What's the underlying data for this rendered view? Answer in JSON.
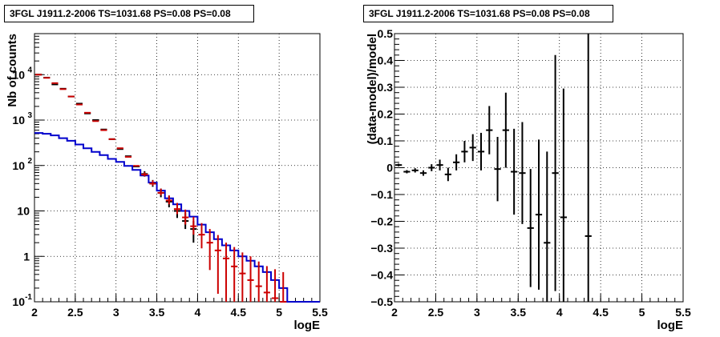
{
  "chart_data": [
    {
      "type": "line",
      "title": "3FGL J1911.2-2006 TS=1031.68 PS=0.08 PS=0.08",
      "xlabel": "logE",
      "ylabel": "Nb of counts",
      "xlim": [
        2,
        5.5
      ],
      "ylim": [
        0.1,
        80000
      ],
      "yscale": "log",
      "grid": true,
      "xticks": [
        "2",
        "2.5",
        "3",
        "3.5",
        "4",
        "4.5",
        "5",
        "5.5"
      ],
      "yticks": [
        {
          "v": 0.1,
          "t": "10"
        },
        {
          "v": 1,
          "t": "1"
        },
        {
          "v": 10,
          "t": "10"
        },
        {
          "v": 100,
          "t": "10"
        },
        {
          "v": 1000,
          "t": "10"
        },
        {
          "v": 10000,
          "t": "10"
        }
      ],
      "ytick_exponents": [
        "-1",
        "",
        "",
        "2",
        "3",
        "4"
      ],
      "bin_width": 0.1,
      "series": [
        {
          "color": "#cc0000",
          "x": [
            2.05,
            2.15,
            2.25,
            2.35,
            2.45,
            2.55,
            2.65,
            2.75,
            2.85,
            2.95,
            3.05,
            3.15,
            3.25,
            3.35,
            3.45,
            3.55,
            3.65,
            3.75,
            3.85,
            3.95,
            4.05,
            4.15,
            4.25,
            4.35,
            4.45,
            4.55,
            4.65,
            4.75,
            4.85,
            4.95,
            5.05
          ],
          "y": [
            10000,
            8500,
            6500,
            4800,
            3300,
            2200,
            1450,
            950,
            600,
            380,
            240,
            155,
            98,
            63,
            40,
            25,
            17,
            11,
            7.2,
            4.6,
            3.0,
            2.0,
            1.35,
            0.9,
            0.6,
            0.42,
            0.3,
            0.22,
            0.16,
            0.12,
            0.1
          ],
          "err_lo": [
            0,
            0,
            0,
            0,
            0,
            0,
            0,
            0,
            0,
            0,
            0,
            0,
            0,
            5,
            4,
            3,
            3,
            2.5,
            2.2,
            1.6,
            1.5,
            1.5,
            1.2,
            0.9,
            0.6,
            0.42,
            0.3,
            0.22,
            0.16,
            0.12,
            0.1
          ],
          "err_hi": [
            0,
            0,
            0,
            0,
            0,
            0,
            0,
            0,
            0,
            0,
            0,
            0,
            0,
            8,
            7,
            6,
            5,
            4,
            3.5,
            2.8,
            2.4,
            2.0,
            1.6,
            1.1,
            1.0,
            0.8,
            0.7,
            0.55,
            0.45,
            0.4,
            0.35
          ]
        },
        {
          "color": "#000000",
          "x": [
            2.05,
            2.15,
            2.25,
            2.35,
            2.45,
            2.55,
            2.65,
            2.75,
            2.85,
            2.95,
            3.05,
            3.15,
            3.25,
            3.35,
            3.45,
            3.55,
            3.65,
            3.75,
            3.85,
            3.95
          ],
          "y": [
            10000,
            8600,
            6100,
            4900,
            3300,
            2300,
            1400,
            1000,
            620,
            380,
            230,
            160,
            95,
            65,
            40,
            25,
            16,
            10,
            6,
            4
          ],
          "err_lo": [
            0,
            0,
            0,
            0,
            0,
            0,
            0,
            0,
            0,
            0,
            0,
            0,
            0,
            8,
            6,
            5,
            4,
            3,
            2,
            2
          ],
          "err_hi": [
            0,
            0,
            0,
            0,
            0,
            0,
            0,
            0,
            0,
            0,
            0,
            0,
            0,
            10,
            8,
            6,
            5,
            4,
            3,
            2
          ]
        },
        {
          "color": "#0000cc",
          "style": "step",
          "x": [
            2.05,
            2.15,
            2.25,
            2.35,
            2.45,
            2.55,
            2.65,
            2.75,
            2.85,
            2.95,
            3.05,
            3.15,
            3.25,
            3.35,
            3.45,
            3.55,
            3.65,
            3.75,
            3.85,
            3.95,
            4.05,
            4.15,
            4.25,
            4.35,
            4.45,
            4.55,
            4.65,
            4.75,
            4.85,
            4.95,
            5.05,
            5.15,
            5.25,
            5.35,
            5.45
          ],
          "y": [
            520,
            500,
            460,
            400,
            350,
            290,
            240,
            200,
            170,
            140,
            120,
            98,
            80,
            60,
            42,
            28,
            19,
            14,
            10,
            7.5,
            5.0,
            3.4,
            2.4,
            1.75,
            1.35,
            1.0,
            0.8,
            0.6,
            0.45,
            0.3,
            0.2,
            0.1,
            0.1,
            0.1,
            0.1
          ]
        }
      ]
    },
    {
      "type": "scatter",
      "title": "3FGL J1911.2-2006 TS=1031.68 PS=0.08 PS=0.08",
      "xlabel": "logE",
      "ylabel": "(data-model)/model",
      "xlim": [
        2,
        5.5
      ],
      "ylim": [
        -0.5,
        0.5
      ],
      "grid": true,
      "xticks": [
        "2",
        "2.5",
        "3",
        "3.5",
        "4",
        "4.5",
        "5",
        "5.5"
      ],
      "yticks": [
        "0.5",
        "0.4",
        "0.3",
        "0.2",
        "0.1",
        "0",
        "−0.1",
        "−0.2",
        "−0.3",
        "−0.4",
        "−0.5"
      ],
      "bin_width": 0.1,
      "series": [
        {
          "color": "#000000",
          "x": [
            2.05,
            2.15,
            2.25,
            2.35,
            2.45,
            2.55,
            2.65,
            2.75,
            2.85,
            2.95,
            3.05,
            3.15,
            3.25,
            3.35,
            3.45,
            3.55,
            3.65,
            3.75,
            3.85,
            3.95,
            4.05,
            4.35
          ],
          "y": [
            0.01,
            -0.015,
            -0.01,
            -0.02,
            0.0,
            0.01,
            -0.025,
            0.02,
            0.06,
            0.075,
            0.06,
            0.14,
            -0.005,
            0.14,
            -0.015,
            -0.02,
            -0.225,
            -0.175,
            -0.28,
            -0.02,
            -0.185,
            -0.255
          ],
          "err": [
            0.005,
            0.006,
            0.008,
            0.01,
            0.013,
            0.02,
            0.025,
            0.03,
            0.04,
            0.05,
            0.07,
            0.09,
            0.12,
            0.14,
            0.16,
            0.19,
            0.22,
            0.28,
            0.34,
            0.44,
            0.48,
            0.85
          ]
        }
      ]
    }
  ]
}
